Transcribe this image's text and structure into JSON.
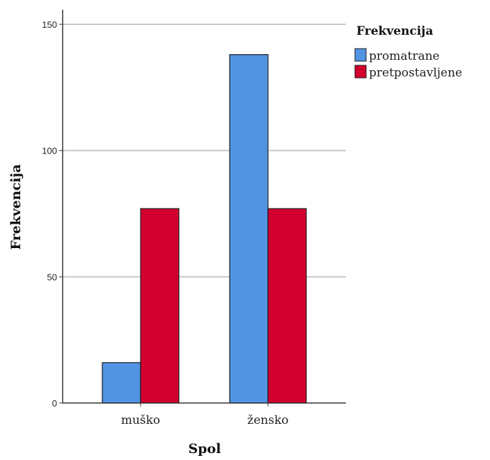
{
  "chart_data": {
    "type": "bar",
    "categories": [
      "muško",
      "žensko"
    ],
    "series": [
      {
        "name": "promatrane",
        "values": [
          16,
          138
        ],
        "color": "#5294e2"
      },
      {
        "name": "pretpostavljene",
        "values": [
          77,
          77
        ],
        "color": "#d1002f"
      }
    ],
    "xlabel": "Spol",
    "ylabel": "Frekvencija",
    "ylim": [
      0,
      150
    ],
    "yticks": [
      0,
      50,
      100,
      150
    ],
    "grid": true,
    "legend": {
      "title": "Frekvencija",
      "placement": "top-right"
    }
  }
}
